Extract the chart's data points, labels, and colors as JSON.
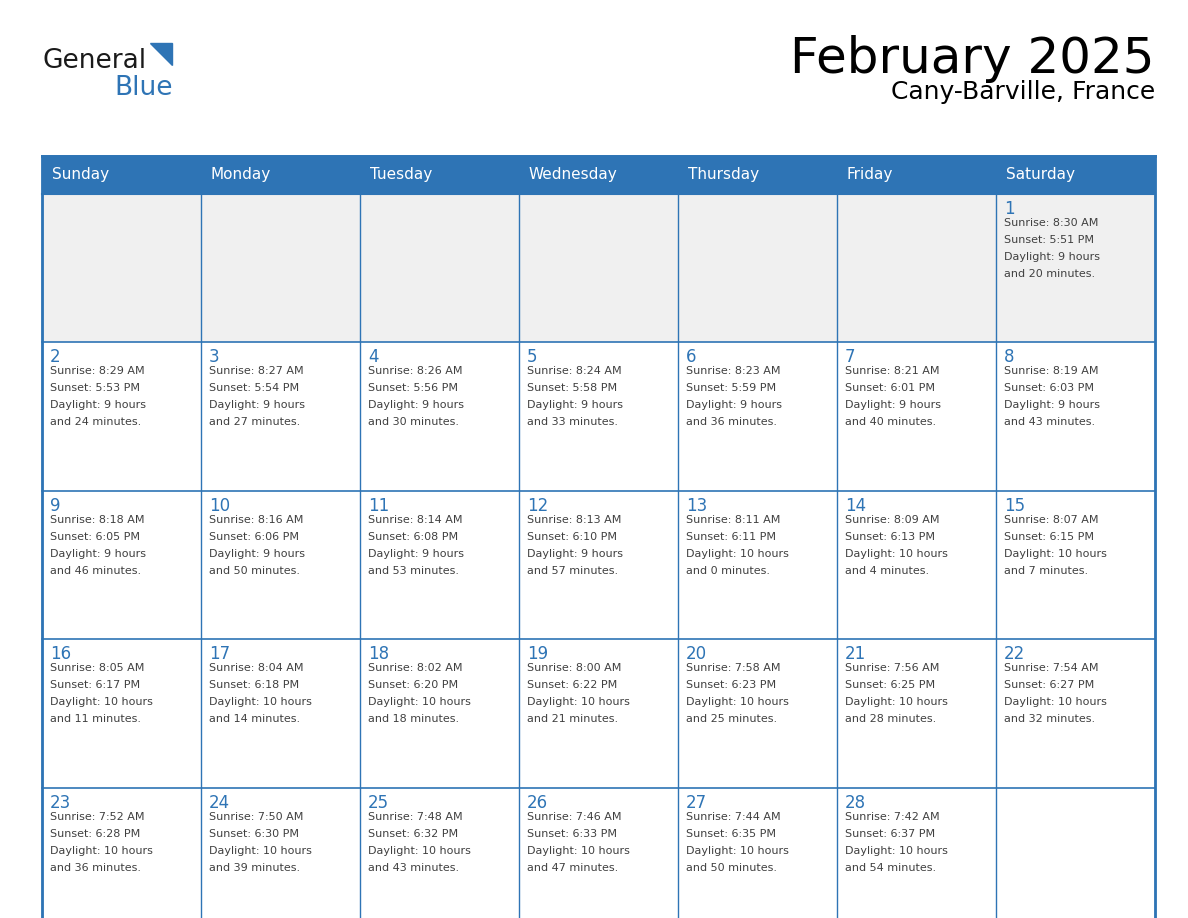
{
  "title": "February 2025",
  "subtitle": "Cany-Barville, France",
  "days_of_week": [
    "Sunday",
    "Monday",
    "Tuesday",
    "Wednesday",
    "Thursday",
    "Friday",
    "Saturday"
  ],
  "header_bg": "#2E74B5",
  "header_text": "#FFFFFF",
  "cell_bg": "#FFFFFF",
  "row1_bg": "#F0F0F0",
  "border_color": "#2E74B5",
  "day_num_color": "#2E74B5",
  "text_color": "#404040",
  "logo_general_color": "#1a1a1a",
  "logo_blue_color": "#2E74B5",
  "calendar_data": [
    [
      {
        "day": null,
        "info": null
      },
      {
        "day": null,
        "info": null
      },
      {
        "day": null,
        "info": null
      },
      {
        "day": null,
        "info": null
      },
      {
        "day": null,
        "info": null
      },
      {
        "day": null,
        "info": null
      },
      {
        "day": 1,
        "info": "Sunrise: 8:30 AM\nSunset: 5:51 PM\nDaylight: 9 hours\nand 20 minutes."
      }
    ],
    [
      {
        "day": 2,
        "info": "Sunrise: 8:29 AM\nSunset: 5:53 PM\nDaylight: 9 hours\nand 24 minutes."
      },
      {
        "day": 3,
        "info": "Sunrise: 8:27 AM\nSunset: 5:54 PM\nDaylight: 9 hours\nand 27 minutes."
      },
      {
        "day": 4,
        "info": "Sunrise: 8:26 AM\nSunset: 5:56 PM\nDaylight: 9 hours\nand 30 minutes."
      },
      {
        "day": 5,
        "info": "Sunrise: 8:24 AM\nSunset: 5:58 PM\nDaylight: 9 hours\nand 33 minutes."
      },
      {
        "day": 6,
        "info": "Sunrise: 8:23 AM\nSunset: 5:59 PM\nDaylight: 9 hours\nand 36 minutes."
      },
      {
        "day": 7,
        "info": "Sunrise: 8:21 AM\nSunset: 6:01 PM\nDaylight: 9 hours\nand 40 minutes."
      },
      {
        "day": 8,
        "info": "Sunrise: 8:19 AM\nSunset: 6:03 PM\nDaylight: 9 hours\nand 43 minutes."
      }
    ],
    [
      {
        "day": 9,
        "info": "Sunrise: 8:18 AM\nSunset: 6:05 PM\nDaylight: 9 hours\nand 46 minutes."
      },
      {
        "day": 10,
        "info": "Sunrise: 8:16 AM\nSunset: 6:06 PM\nDaylight: 9 hours\nand 50 minutes."
      },
      {
        "day": 11,
        "info": "Sunrise: 8:14 AM\nSunset: 6:08 PM\nDaylight: 9 hours\nand 53 minutes."
      },
      {
        "day": 12,
        "info": "Sunrise: 8:13 AM\nSunset: 6:10 PM\nDaylight: 9 hours\nand 57 minutes."
      },
      {
        "day": 13,
        "info": "Sunrise: 8:11 AM\nSunset: 6:11 PM\nDaylight: 10 hours\nand 0 minutes."
      },
      {
        "day": 14,
        "info": "Sunrise: 8:09 AM\nSunset: 6:13 PM\nDaylight: 10 hours\nand 4 minutes."
      },
      {
        "day": 15,
        "info": "Sunrise: 8:07 AM\nSunset: 6:15 PM\nDaylight: 10 hours\nand 7 minutes."
      }
    ],
    [
      {
        "day": 16,
        "info": "Sunrise: 8:05 AM\nSunset: 6:17 PM\nDaylight: 10 hours\nand 11 minutes."
      },
      {
        "day": 17,
        "info": "Sunrise: 8:04 AM\nSunset: 6:18 PM\nDaylight: 10 hours\nand 14 minutes."
      },
      {
        "day": 18,
        "info": "Sunrise: 8:02 AM\nSunset: 6:20 PM\nDaylight: 10 hours\nand 18 minutes."
      },
      {
        "day": 19,
        "info": "Sunrise: 8:00 AM\nSunset: 6:22 PM\nDaylight: 10 hours\nand 21 minutes."
      },
      {
        "day": 20,
        "info": "Sunrise: 7:58 AM\nSunset: 6:23 PM\nDaylight: 10 hours\nand 25 minutes."
      },
      {
        "day": 21,
        "info": "Sunrise: 7:56 AM\nSunset: 6:25 PM\nDaylight: 10 hours\nand 28 minutes."
      },
      {
        "day": 22,
        "info": "Sunrise: 7:54 AM\nSunset: 6:27 PM\nDaylight: 10 hours\nand 32 minutes."
      }
    ],
    [
      {
        "day": 23,
        "info": "Sunrise: 7:52 AM\nSunset: 6:28 PM\nDaylight: 10 hours\nand 36 minutes."
      },
      {
        "day": 24,
        "info": "Sunrise: 7:50 AM\nSunset: 6:30 PM\nDaylight: 10 hours\nand 39 minutes."
      },
      {
        "day": 25,
        "info": "Sunrise: 7:48 AM\nSunset: 6:32 PM\nDaylight: 10 hours\nand 43 minutes."
      },
      {
        "day": 26,
        "info": "Sunrise: 7:46 AM\nSunset: 6:33 PM\nDaylight: 10 hours\nand 47 minutes."
      },
      {
        "day": 27,
        "info": "Sunrise: 7:44 AM\nSunset: 6:35 PM\nDaylight: 10 hours\nand 50 minutes."
      },
      {
        "day": 28,
        "info": "Sunrise: 7:42 AM\nSunset: 6:37 PM\nDaylight: 10 hours\nand 54 minutes."
      },
      {
        "day": null,
        "info": null
      }
    ]
  ]
}
